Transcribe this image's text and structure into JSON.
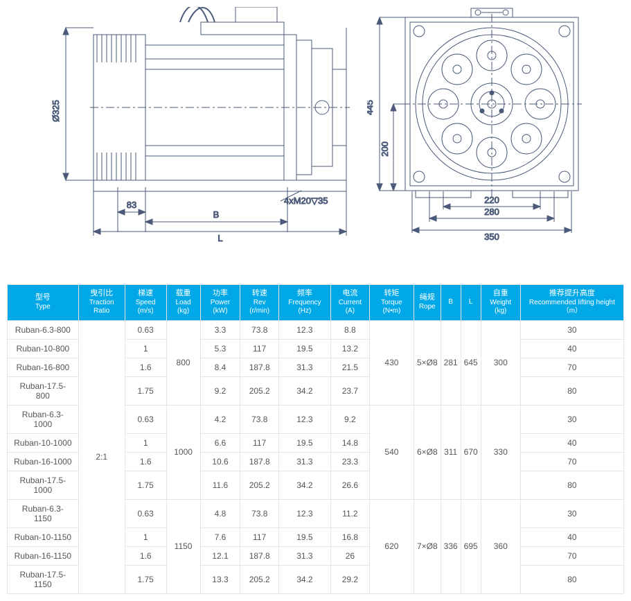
{
  "diagram": {
    "stroke": "#4a5a78",
    "stroke_width": 1,
    "font_size": 13,
    "dims_left": {
      "diameter_label": "Ø325",
      "spacer_label": "83",
      "b_label": "B",
      "l_label": "L",
      "bolt_spec": "4xM20▽35"
    },
    "dims_right": {
      "height_label": "445",
      "inner_height_label": "200",
      "w1": "220",
      "w2": "280",
      "w3": "350"
    }
  },
  "table": {
    "header_bg": "#00a8e7",
    "header_fg": "#ffffff",
    "border_color": "#e5e5e5",
    "columns": [
      {
        "cn": "型号",
        "en": "Type"
      },
      {
        "cn": "曳引比",
        "en": "Traction Ratio"
      },
      {
        "cn": "梯速",
        "en": "Speed (m/s)"
      },
      {
        "cn": "载重",
        "en": "Load (kg)"
      },
      {
        "cn": "功率",
        "en": "Power (kW)"
      },
      {
        "cn": "转速",
        "en": "Rev (r/min)"
      },
      {
        "cn": "频率",
        "en": "Frequency (Hz)"
      },
      {
        "cn": "电流",
        "en": "Current (A)"
      },
      {
        "cn": "转矩",
        "en": "Torque (N•m)"
      },
      {
        "cn": "绳规",
        "en": "Rope"
      },
      {
        "cn": "",
        "en": "B"
      },
      {
        "cn": "",
        "en": "L"
      },
      {
        "cn": "自重",
        "en": "Weight (kg)"
      },
      {
        "cn": "推荐提升高度",
        "en": "Recommended lifting height（m）"
      }
    ],
    "traction_ratio": "2:1",
    "groups": [
      {
        "load": "800",
        "torque": "430",
        "rope": "5×Ø8",
        "B": "281",
        "L": "645",
        "weight": "300",
        "rows": [
          {
            "type": "Ruban-6.3-800",
            "speed": "0.63",
            "power": "3.3",
            "rev": "73.8",
            "freq": "12.3",
            "current": "8.8",
            "height": "30"
          },
          {
            "type": "Ruban-10-800",
            "speed": "1",
            "power": "5.3",
            "rev": "117",
            "freq": "19.5",
            "current": "13.2",
            "height": "40"
          },
          {
            "type": "Ruban-16-800",
            "speed": "1.6",
            "power": "8.4",
            "rev": "187.8",
            "freq": "31.3",
            "current": "21.5",
            "height": "70"
          },
          {
            "type": "Ruban-17.5-800",
            "speed": "1.75",
            "power": "9.2",
            "rev": "205.2",
            "freq": "34.2",
            "current": "23.7",
            "height": "80"
          }
        ]
      },
      {
        "load": "1000",
        "torque": "540",
        "rope": "6×Ø8",
        "B": "311",
        "L": "670",
        "weight": "330",
        "rows": [
          {
            "type": "Ruban-6.3-1000",
            "speed": "0.63",
            "power": "4.2",
            "rev": "73.8",
            "freq": "12.3",
            "current": "9.2",
            "height": "30"
          },
          {
            "type": "Ruban-10-1000",
            "speed": "1",
            "power": "6.6",
            "rev": "117",
            "freq": "19.5",
            "current": "14.8",
            "height": "40"
          },
          {
            "type": "Ruban-16-1000",
            "speed": "1.6",
            "power": "10.6",
            "rev": "187.8",
            "freq": "31.3",
            "current": "23.3",
            "height": "70"
          },
          {
            "type": "Ruban-17.5-1000",
            "speed": "1.75",
            "power": "11.6",
            "rev": "205.2",
            "freq": "34.2",
            "current": "26.6",
            "height": "80"
          }
        ]
      },
      {
        "load": "1150",
        "torque": "620",
        "rope": "7×Ø8",
        "B": "336",
        "L": "695",
        "weight": "360",
        "rows": [
          {
            "type": "Ruban-6.3-1150",
            "speed": "0.63",
            "power": "4.8",
            "rev": "73.8",
            "freq": "12.3",
            "current": "11.2",
            "height": "30"
          },
          {
            "type": "Ruban-10-1150",
            "speed": "1",
            "power": "7.6",
            "rev": "117",
            "freq": "19.5",
            "current": "16.8",
            "height": "40"
          },
          {
            "type": "Ruban-16-1150",
            "speed": "1.6",
            "power": "12.1",
            "rev": "187.8",
            "freq": "31.3",
            "current": "26",
            "height": "70"
          },
          {
            "type": "Ruban-17.5-1150",
            "speed": "1.75",
            "power": "13.3",
            "rev": "205.2",
            "freq": "34.2",
            "current": "29.2",
            "height": "80"
          }
        ]
      }
    ]
  }
}
